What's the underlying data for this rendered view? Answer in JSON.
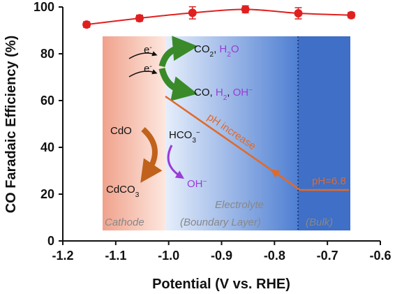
{
  "chart_data": {
    "type": "line",
    "xlabel": "Potential (V vs. RHE)",
    "ylabel": "CO Faradaic Efficiency (%)",
    "xlim": [
      -1.2,
      -0.6
    ],
    "ylim": [
      0,
      100
    ],
    "x_ticks": [
      "-1.2",
      "-1.1",
      "-1.0",
      "-0.9",
      "-0.8",
      "-0.7",
      "-0.6"
    ],
    "y_ticks": [
      "0",
      "20",
      "40",
      "60",
      "80",
      "100"
    ],
    "series": [
      {
        "x": [
          -1.155,
          -1.055,
          -0.955,
          -0.855,
          -0.755,
          -0.655
        ],
        "y": [
          92.5,
          95.2,
          97.5,
          99.0,
          97.3,
          96.5
        ],
        "err": [
          1.2,
          1.3,
          2.6,
          1.5,
          2.4,
          1.2
        ],
        "color": "#e02020",
        "marker": "circle"
      }
    ],
    "inset": {
      "region_labels": [
        "Cathode",
        "Electrolyte",
        "(Boundary Layer)",
        "(Bulk)"
      ],
      "electron": "e",
      "electron_sup": "-",
      "products_top": {
        "a": "CO",
        "a_sub": "2",
        "sep": ", ",
        "b": "H",
        "b_sub": "2",
        "b_tail": "O"
      },
      "products_mid": {
        "a": "CO, ",
        "b": "H",
        "b_sub": "2",
        "sep": ", ",
        "c": "OH",
        "c_sup": "−"
      },
      "cdo": "CdO",
      "cdco3": "CdCO",
      "cdco3_sub": "3",
      "hco3": "HCO",
      "hco3_sub": "3",
      "hco3_sup": "−",
      "oh": "OH",
      "oh_sup": "−",
      "ph_increase": "pH increase",
      "ph_bulk": "pH=6.8",
      "colors": {
        "purple": "#9b3bd8",
        "orange": "#e06a2a",
        "green": "#3a8a2a",
        "brown": "#c0621b"
      }
    }
  }
}
